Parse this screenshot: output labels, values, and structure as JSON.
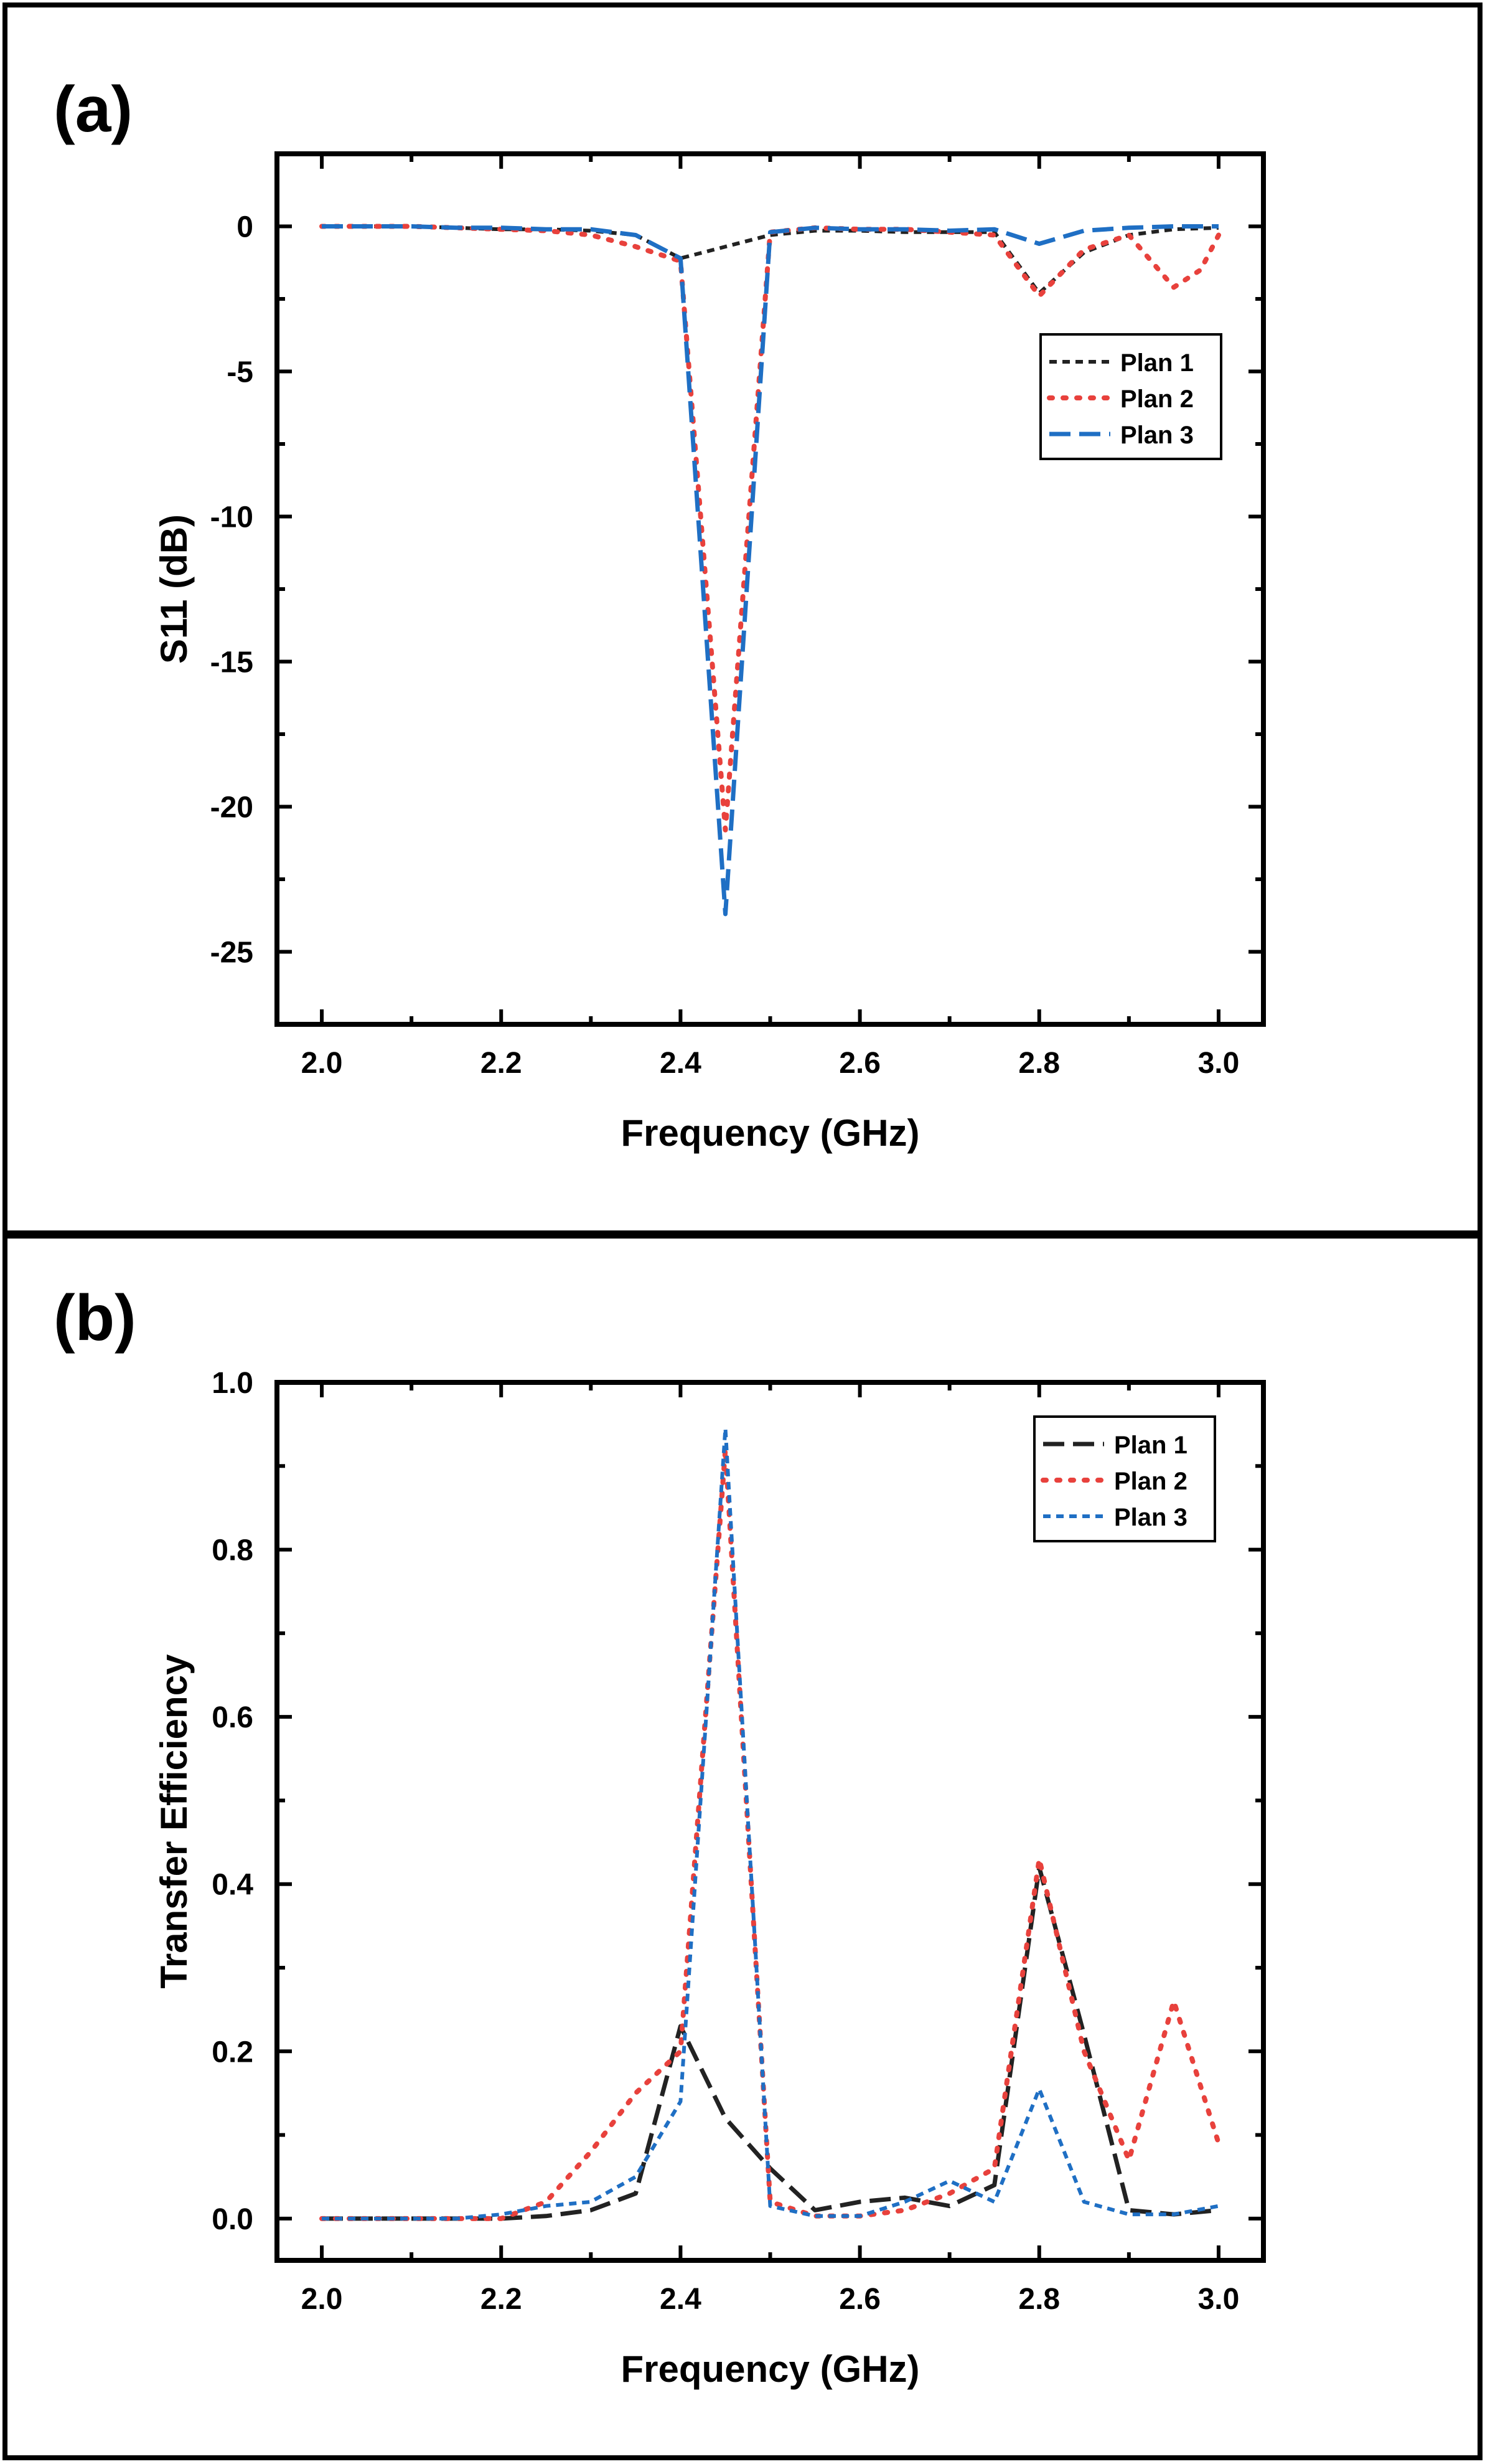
{
  "chart_data": [
    {
      "panel_label": "(a)",
      "type": "line",
      "xlabel": "Frequency (GHz)",
      "ylabel": "S11 (dB)",
      "xlim": [
        1.95,
        3.05
      ],
      "ylim": [
        -27.5,
        2.5
      ],
      "xticks": [
        2.0,
        2.2,
        2.4,
        2.6,
        2.8,
        3.0
      ],
      "xtick_labels": [
        "2.0",
        "2.2",
        "2.4",
        "2.6",
        "2.8",
        "3.0"
      ],
      "yticks": [
        0,
        -5,
        -10,
        -15,
        -20,
        -25
      ],
      "ytick_labels": [
        "0",
        "-5",
        "-10",
        "-15",
        "-20",
        "-25"
      ],
      "legend_position": "right-upper",
      "series": [
        {
          "name": "Plan 1",
          "color": "#222222",
          "dash": "short-dash",
          "x": [
            2.0,
            2.05,
            2.1,
            2.15,
            2.2,
            2.25,
            2.3,
            2.35,
            2.4,
            2.45,
            2.5,
            2.55,
            2.6,
            2.65,
            2.7,
            2.75,
            2.8,
            2.85,
            2.9,
            2.95,
            3.0
          ],
          "y": [
            0,
            0,
            0,
            -0.05,
            -0.1,
            -0.1,
            -0.15,
            -0.3,
            -1.1,
            -0.7,
            -0.3,
            -0.15,
            -0.15,
            -0.2,
            -0.2,
            -0.2,
            -2.3,
            -0.9,
            -0.3,
            -0.1,
            -0.05
          ]
        },
        {
          "name": "Plan 2",
          "color": "#e8413c",
          "dash": "dotted",
          "x": [
            2.0,
            2.05,
            2.1,
            2.15,
            2.2,
            2.25,
            2.3,
            2.35,
            2.4,
            2.45,
            2.5,
            2.55,
            2.6,
            2.65,
            2.7,
            2.75,
            2.8,
            2.85,
            2.9,
            2.95,
            2.98,
            3.0
          ],
          "y": [
            0,
            0,
            0,
            -0.05,
            -0.1,
            -0.15,
            -0.3,
            -0.7,
            -1.2,
            -20.8,
            -0.2,
            -0.05,
            -0.1,
            -0.1,
            -0.2,
            -0.3,
            -2.4,
            -0.8,
            -0.3,
            -2.1,
            -1.5,
            -0.3
          ]
        },
        {
          "name": "Plan 3",
          "color": "#1f6fc4",
          "dash": "long-dash",
          "x": [
            2.0,
            2.05,
            2.1,
            2.15,
            2.2,
            2.25,
            2.3,
            2.35,
            2.4,
            2.45,
            2.5,
            2.55,
            2.6,
            2.65,
            2.7,
            2.75,
            2.8,
            2.85,
            2.9,
            2.95,
            3.0
          ],
          "y": [
            0,
            0,
            0,
            -0.05,
            -0.05,
            -0.1,
            -0.1,
            -0.3,
            -1.1,
            -23.7,
            -0.2,
            -0.05,
            -0.1,
            -0.1,
            -0.15,
            -0.1,
            -0.6,
            -0.15,
            -0.05,
            0,
            0
          ]
        }
      ]
    },
    {
      "panel_label": "(b)",
      "type": "line",
      "xlabel": "Frequency (GHz)",
      "ylabel": "Transfer Efficiency",
      "xlim": [
        1.95,
        3.05
      ],
      "ylim": [
        -0.05,
        1.0
      ],
      "xticks": [
        2.0,
        2.2,
        2.4,
        2.6,
        2.8,
        3.0
      ],
      "xtick_labels": [
        "2.0",
        "2.2",
        "2.4",
        "2.6",
        "2.8",
        "3.0"
      ],
      "yticks": [
        0,
        0.2,
        0.4,
        0.6,
        0.8,
        1.0
      ],
      "ytick_labels": [
        "0.0",
        "0.2",
        "0.4",
        "0.6",
        "0.8",
        "1.0"
      ],
      "legend_position": "top-right",
      "series": [
        {
          "name": "Plan 1",
          "color": "#222222",
          "dash": "long-dash",
          "x": [
            2.0,
            2.05,
            2.1,
            2.15,
            2.2,
            2.25,
            2.3,
            2.35,
            2.4,
            2.45,
            2.5,
            2.55,
            2.6,
            2.65,
            2.7,
            2.75,
            2.8,
            2.85,
            2.9,
            2.95,
            3.0
          ],
          "y": [
            0,
            0,
            0,
            0,
            0,
            0.003,
            0.01,
            0.03,
            0.23,
            0.12,
            0.06,
            0.01,
            0.02,
            0.025,
            0.015,
            0.04,
            0.42,
            0.22,
            0.01,
            0.005,
            0.01
          ]
        },
        {
          "name": "Plan 2",
          "color": "#e8413c",
          "dash": "dotted",
          "x": [
            2.0,
            2.05,
            2.1,
            2.15,
            2.2,
            2.25,
            2.3,
            2.35,
            2.4,
            2.45,
            2.5,
            2.55,
            2.6,
            2.65,
            2.7,
            2.75,
            2.8,
            2.85,
            2.9,
            2.95,
            3.0
          ],
          "y": [
            0,
            0,
            0,
            0,
            0,
            0.02,
            0.08,
            0.15,
            0.2,
            0.92,
            0.02,
            0.003,
            0.003,
            0.01,
            0.03,
            0.06,
            0.43,
            0.2,
            0.07,
            0.26,
            0.09
          ]
        },
        {
          "name": "Plan 3",
          "color": "#1f6fc4",
          "dash": "short-dash",
          "x": [
            2.0,
            2.05,
            2.1,
            2.15,
            2.2,
            2.25,
            2.3,
            2.35,
            2.4,
            2.45,
            2.5,
            2.55,
            2.6,
            2.65,
            2.7,
            2.75,
            2.8,
            2.85,
            2.9,
            2.95,
            3.0
          ],
          "y": [
            0,
            0,
            0,
            0,
            0.005,
            0.015,
            0.02,
            0.05,
            0.14,
            0.945,
            0.015,
            0.003,
            0.003,
            0.02,
            0.045,
            0.02,
            0.155,
            0.02,
            0.005,
            0.005,
            0.015
          ]
        }
      ]
    }
  ]
}
